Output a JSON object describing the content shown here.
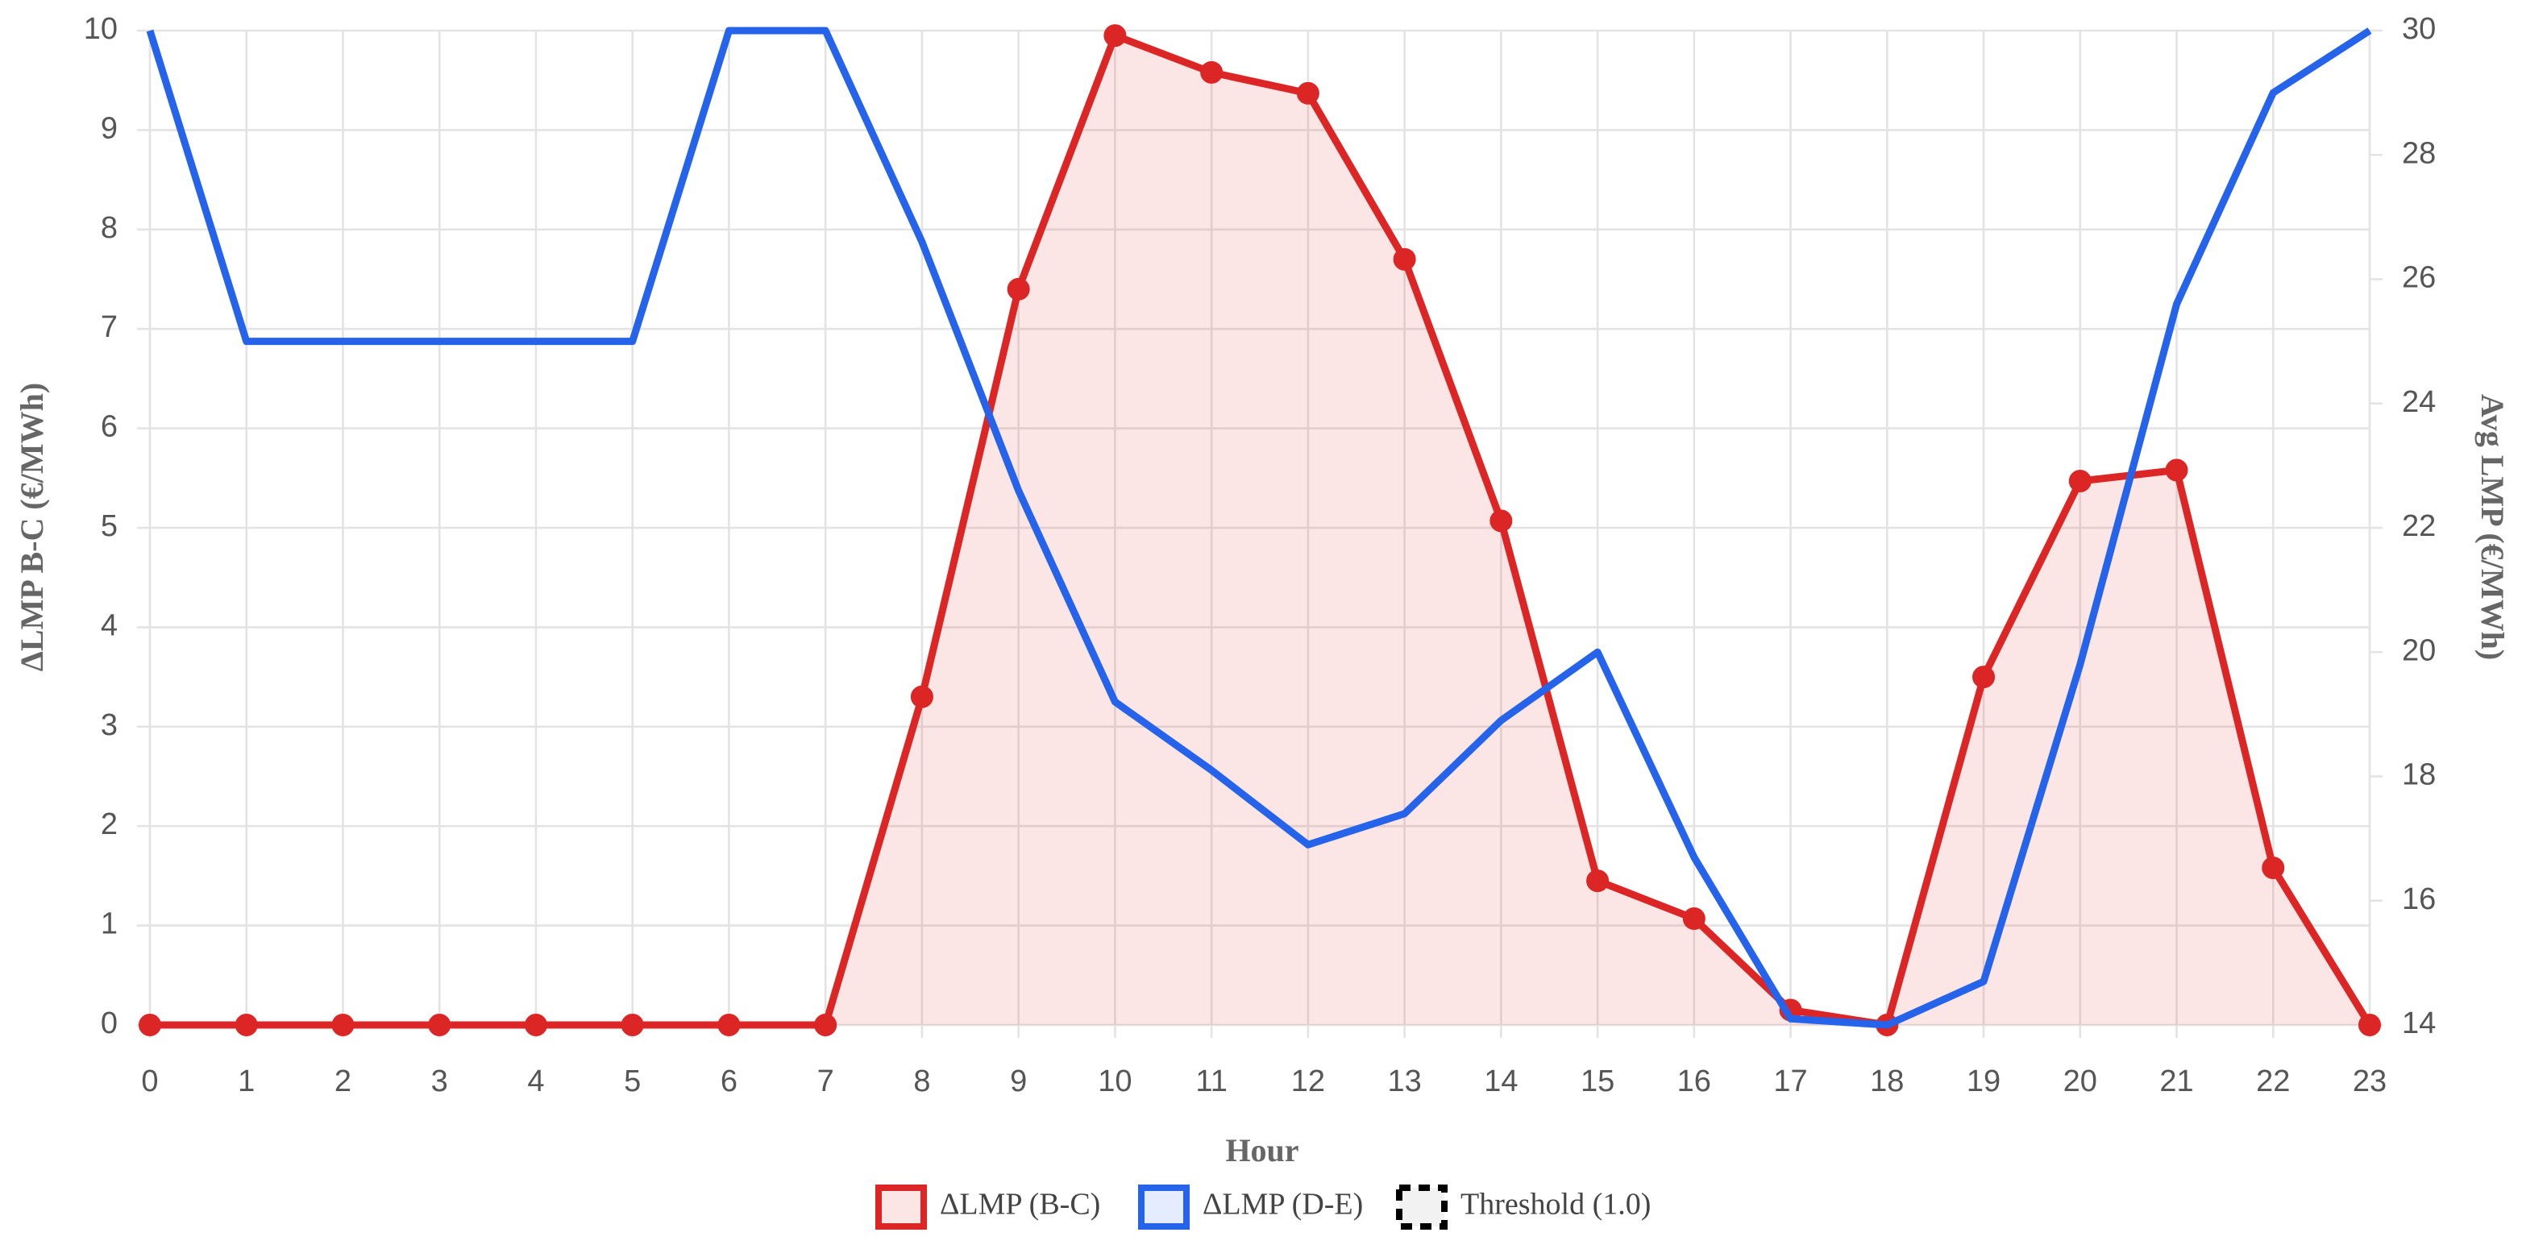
{
  "chart_data": {
    "type": "line",
    "x_label": "Hour",
    "y_label": "ΔLMP B-C (€/MWh)",
    "y2_label": "Avg LMP (€/MWh)",
    "x": [
      0,
      1,
      2,
      3,
      4,
      5,
      6,
      7,
      8,
      9,
      10,
      11,
      12,
      13,
      14,
      15,
      16,
      17,
      18,
      19,
      20,
      21,
      22,
      23
    ],
    "xlim": [
      0,
      23
    ],
    "xticks": [
      0,
      1,
      2,
      3,
      4,
      5,
      6,
      7,
      8,
      9,
      10,
      11,
      12,
      13,
      14,
      15,
      16,
      17,
      18,
      19,
      20,
      21,
      22,
      23
    ],
    "ylim": [
      0,
      10
    ],
    "yticks": [
      0,
      1,
      2,
      3,
      4,
      5,
      6,
      7,
      8,
      9,
      10
    ],
    "y2lim": [
      14,
      30
    ],
    "y2ticks": [
      14,
      16,
      18,
      20,
      22,
      24,
      26,
      28,
      30
    ],
    "grid": true,
    "legend": "bottom",
    "series": [
      {
        "name": "ΔLMP (B-C)",
        "color": "#dc2626",
        "fill": true,
        "markers": true,
        "values": [
          0,
          0,
          0,
          0,
          0,
          0,
          0,
          0,
          3.3,
          7.4,
          9.95,
          9.58,
          9.37,
          7.7,
          5.07,
          1.45,
          1.07,
          0.15,
          0,
          3.5,
          5.47,
          5.58,
          1.58,
          0
        ]
      },
      {
        "name": "ΔLMP (D-E)",
        "color": "#2563eb",
        "axis": "y2",
        "values": [
          30,
          25,
          25,
          25,
          25,
          25,
          30,
          30,
          26.6,
          22.6,
          19.2,
          18.1,
          16.9,
          17.4,
          18.9,
          20,
          16.7,
          14.1,
          14,
          14.7,
          19.8,
          25.6,
          29,
          30
        ]
      },
      {
        "name": "Threshold (1.0)",
        "color": "#000000",
        "dashed": true
      }
    ]
  }
}
